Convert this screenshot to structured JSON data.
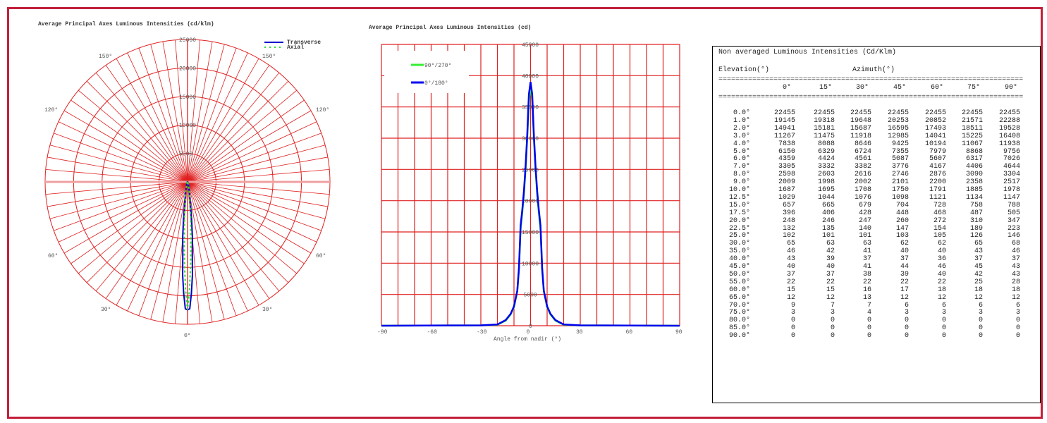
{
  "chart_data": [
    {
      "type": "polar",
      "title": "Average Principal Axes Luminous Intensities (cd/klm)",
      "radial_ticks": [
        "5000",
        "10000",
        "15000",
        "20000",
        "25000"
      ],
      "rlim": [
        0,
        25000
      ],
      "angle_labels": {
        "bottom": "0°",
        "lower_left": "30°",
        "lower_right": "30°",
        "mid_left": "60°",
        "mid_right": "60°",
        "upper_left": "120°",
        "upper_right": "120°",
        "top_left": "150°",
        "top_right": "150°"
      },
      "grid": true,
      "legend_position": "top-right",
      "angles": [
        0,
        1,
        2,
        3,
        4,
        5,
        6,
        7,
        8,
        9,
        10,
        12.5,
        15,
        17.5,
        20,
        22.5,
        25,
        30,
        35,
        40,
        45,
        50,
        55,
        60,
        65,
        70,
        75,
        80,
        85,
        90
      ],
      "series": [
        {
          "name": "Transverse",
          "color": "#0000cc",
          "values": [
            22455,
            22288,
            19528,
            16408,
            11938,
            9756,
            7026,
            4644,
            3304,
            2517,
            1978,
            1147,
            788,
            505,
            347,
            223,
            146,
            68,
            46,
            37,
            43,
            43,
            28,
            18,
            12,
            6,
            3,
            0,
            0,
            0
          ]
        },
        {
          "name": "Axial",
          "color": "#33dd33",
          "values": [
            22455,
            19145,
            14941,
            11267,
            7838,
            6150,
            4359,
            3305,
            2598,
            2009,
            1687,
            1029,
            657,
            396,
            248,
            132,
            102,
            65,
            46,
            43,
            40,
            37,
            22,
            15,
            12,
            9,
            3,
            0,
            0,
            0
          ]
        }
      ]
    },
    {
      "type": "line",
      "title": "Average Principal Axes Luminous Intensities (cd)",
      "xlabel": "Angle from nadir (°)",
      "ylabel": "",
      "xlim": [
        -90,
        90
      ],
      "ylim": [
        0,
        45000
      ],
      "x_ticks": [
        "-90",
        "-60",
        "-30",
        "0",
        "30",
        "60",
        "90"
      ],
      "y_ticks": [
        "0",
        "5000",
        "10000",
        "15000",
        "20000",
        "25000",
        "30000",
        "35000",
        "40000",
        "45000"
      ],
      "grid": true,
      "legend_position": "top-left",
      "x": [
        -90,
        -30,
        -20,
        -15,
        -12,
        -10,
        -8,
        -7,
        -6,
        -5,
        -4,
        -3,
        -2,
        -1,
        0,
        1,
        2,
        3,
        4,
        5,
        6,
        7,
        8,
        10,
        12,
        15,
        20,
        30,
        90
      ],
      "series": [
        {
          "name": "90°/270°",
          "color": "#33ee33",
          "values": [
            0,
            60,
            150,
            800,
            1800,
            3000,
            5500,
            9000,
            15500,
            18000,
            21000,
            25000,
            30000,
            36000,
            38500,
            36000,
            30000,
            25000,
            21000,
            18000,
            15500,
            9000,
            5500,
            3000,
            1800,
            800,
            150,
            60,
            0
          ]
        },
        {
          "name": "0°/180°",
          "color": "#0000ee",
          "values": [
            0,
            60,
            200,
            900,
            1900,
            3100,
            5600,
            9200,
            16000,
            18500,
            21500,
            25500,
            30500,
            37000,
            39000,
            37000,
            30500,
            25500,
            21500,
            18500,
            16000,
            9200,
            5600,
            3100,
            1900,
            900,
            200,
            60,
            0
          ]
        }
      ]
    }
  ],
  "table": {
    "title": "Non averaged Luminous Intensities (Cd/Klm)",
    "row_header": "Elevation(°)",
    "col_header": "Azimuth(°)",
    "separator": "==============================================================================",
    "columns": [
      "0°",
      "15°",
      "30°",
      "45°",
      "60°",
      "75°",
      "90°"
    ],
    "rows": [
      {
        "elev": "0.0°",
        "values": [
          "22455",
          "22455",
          "22455",
          "22455",
          "22455",
          "22455",
          "22455"
        ]
      },
      {
        "elev": "1.0°",
        "values": [
          "19145",
          "19318",
          "19648",
          "20253",
          "20852",
          "21571",
          "22288"
        ]
      },
      {
        "elev": "2.0°",
        "values": [
          "14941",
          "15181",
          "15687",
          "16595",
          "17493",
          "18511",
          "19528"
        ]
      },
      {
        "elev": "3.0°",
        "values": [
          "11267",
          "11475",
          "11918",
          "12985",
          "14041",
          "15225",
          "16408"
        ]
      },
      {
        "elev": "4.0°",
        "values": [
          "7838",
          "8088",
          "8646",
          "9425",
          "10194",
          "11067",
          "11938"
        ]
      },
      {
        "elev": "5.0°",
        "values": [
          "6150",
          "6329",
          "6724",
          "7355",
          "7979",
          "8868",
          "9756"
        ]
      },
      {
        "elev": "6.0°",
        "values": [
          "4359",
          "4424",
          "4561",
          "5087",
          "5607",
          "6317",
          "7026"
        ]
      },
      {
        "elev": "7.0°",
        "values": [
          "3305",
          "3332",
          "3382",
          "3776",
          "4167",
          "4406",
          "4644"
        ]
      },
      {
        "elev": "8.0°",
        "values": [
          "2598",
          "2603",
          "2616",
          "2746",
          "2876",
          "3090",
          "3304"
        ]
      },
      {
        "elev": "9.0°",
        "values": [
          "2009",
          "1998",
          "2002",
          "2101",
          "2200",
          "2358",
          "2517"
        ]
      },
      {
        "elev": "10.0°",
        "values": [
          "1687",
          "1695",
          "1708",
          "1750",
          "1791",
          "1885",
          "1978"
        ]
      },
      {
        "elev": "12.5°",
        "values": [
          "1029",
          "1044",
          "1076",
          "1098",
          "1121",
          "1134",
          "1147"
        ]
      },
      {
        "elev": "15.0°",
        "values": [
          "657",
          "665",
          "679",
          "704",
          "728",
          "758",
          "788"
        ]
      },
      {
        "elev": "17.5°",
        "values": [
          "396",
          "406",
          "428",
          "448",
          "468",
          "487",
          "505"
        ]
      },
      {
        "elev": "20.0°",
        "values": [
          "248",
          "246",
          "247",
          "260",
          "272",
          "310",
          "347"
        ]
      },
      {
        "elev": "22.5°",
        "values": [
          "132",
          "135",
          "140",
          "147",
          "154",
          "189",
          "223"
        ]
      },
      {
        "elev": "25.0°",
        "values": [
          "102",
          "101",
          "101",
          "103",
          "105",
          "126",
          "146"
        ]
      },
      {
        "elev": "30.0°",
        "values": [
          "65",
          "63",
          "63",
          "62",
          "62",
          "65",
          "68"
        ]
      },
      {
        "elev": "35.0°",
        "values": [
          "46",
          "42",
          "41",
          "40",
          "40",
          "43",
          "46"
        ]
      },
      {
        "elev": "40.0°",
        "values": [
          "43",
          "39",
          "37",
          "37",
          "36",
          "37",
          "37"
        ]
      },
      {
        "elev": "45.0°",
        "values": [
          "40",
          "40",
          "41",
          "44",
          "46",
          "45",
          "43"
        ]
      },
      {
        "elev": "50.0°",
        "values": [
          "37",
          "37",
          "38",
          "39",
          "40",
          "42",
          "43"
        ]
      },
      {
        "elev": "55.0°",
        "values": [
          "22",
          "22",
          "22",
          "22",
          "22",
          "25",
          "28"
        ]
      },
      {
        "elev": "60.0°",
        "values": [
          "15",
          "15",
          "16",
          "17",
          "18",
          "18",
          "18"
        ]
      },
      {
        "elev": "65.0°",
        "values": [
          "12",
          "12",
          "13",
          "12",
          "12",
          "12",
          "12"
        ]
      },
      {
        "elev": "70.0°",
        "values": [
          "9",
          "7",
          "7",
          "6",
          "6",
          "6",
          "6"
        ]
      },
      {
        "elev": "75.0°",
        "values": [
          "3",
          "3",
          "4",
          "3",
          "3",
          "3",
          "3"
        ]
      },
      {
        "elev": "80.0°",
        "values": [
          "0",
          "0",
          "0",
          "0",
          "0",
          "0",
          "0"
        ]
      },
      {
        "elev": "85.0°",
        "values": [
          "0",
          "0",
          "0",
          "0",
          "0",
          "0",
          "0"
        ]
      },
      {
        "elev": "90.0°",
        "values": [
          "0",
          "0",
          "0",
          "0",
          "0",
          "0",
          "0"
        ]
      }
    ]
  },
  "colors": {
    "frame": "#c41e3a",
    "grid": "#e02020"
  }
}
